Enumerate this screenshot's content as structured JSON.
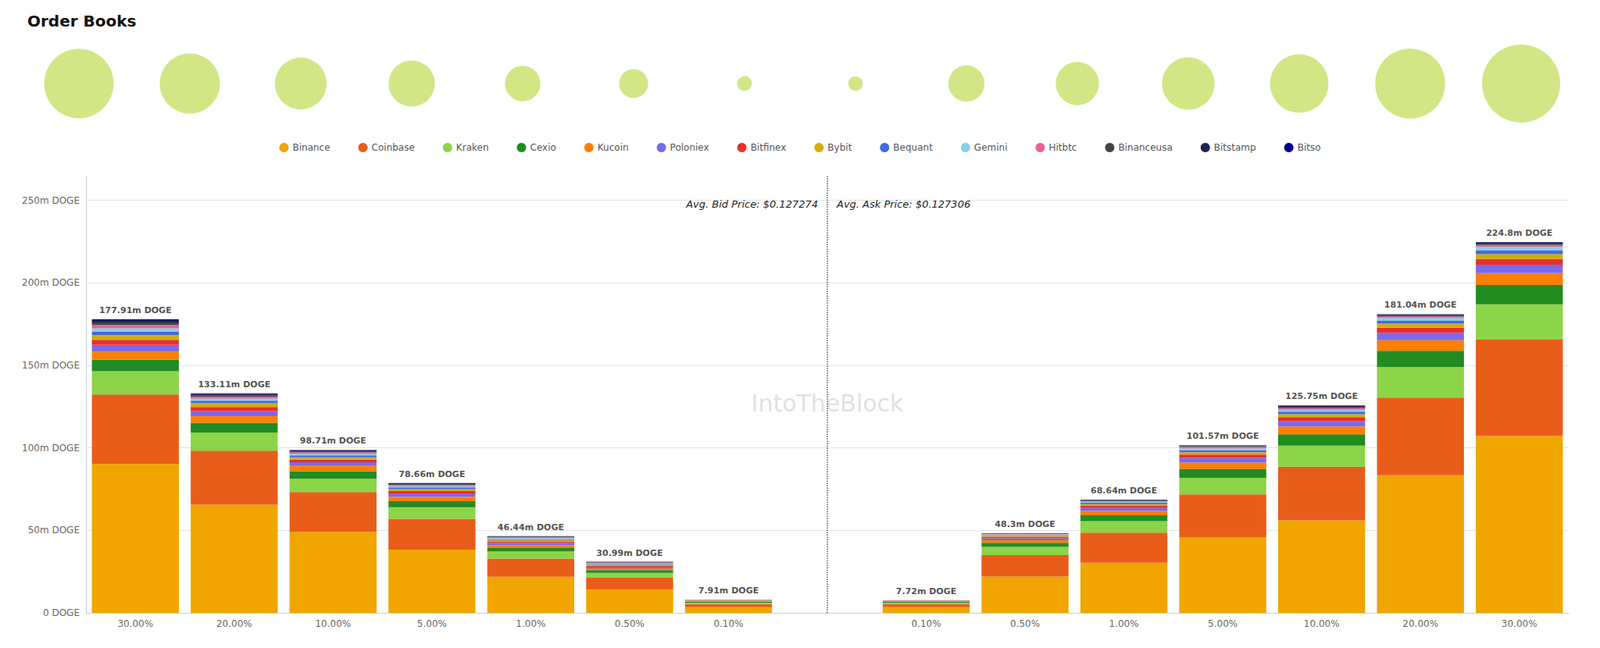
{
  "chart_data": {
    "type": "bar",
    "title": "Order Books",
    "categories": [
      "30.00%",
      "20.00%",
      "10.00%",
      "5.00%",
      "1.00%",
      "0.50%",
      "0.10%",
      null,
      "0.10%",
      "0.50%",
      "1.00%",
      "5.00%",
      "10.00%",
      "20.00%",
      "30.00%"
    ],
    "stacked": true,
    "series": [
      {
        "name": "Binance",
        "color": "#F0A500",
        "values": [
          90.2536,
          65.5567,
          49.1494,
          38.3659,
          21.8963,
          14.0687,
          3.4824,
          null,
          3.4865,
          22,
          30.3538,
          45.9096,
          56.1076,
          83.3879,
          107.1404
        ]
      },
      {
        "name": "Coinbase",
        "color": "#E85D1A",
        "values": [
          42.1184,
          32.7784,
          24.0732,
          18.6911,
          10.9481,
          7.2769,
          1.9899,
          null,
          1.9923,
          13,
          18.2123,
          25.9489,
          32.4834,
          47.0896,
          58.4402
        ]
      },
      {
        "name": "Kraken",
        "color": "#8CD448",
        "values": [
          14.0395,
          10.9261,
          8.0244,
          6.8862,
          4.4788,
          2.9108,
          0.6965,
          null,
          0.6973,
          5,
          7.0825,
          9.9803,
          12.7965,
          18.6396,
          21.4281
        ]
      },
      {
        "name": "Cexio",
        "color": "#228B22",
        "values": [
          7.0197,
          5.9597,
          4.5137,
          3.7382,
          2.2892,
          1.6494,
          0.4477,
          null,
          0.4483,
          2.5,
          3.5413,
          5.4892,
          6.8904,
          9.8103,
          11.688
        ]
      },
      {
        "name": "Kucoin",
        "color": "#FF7F00",
        "values": [
          5.0141,
          3.9731,
          3.3101,
          2.7545,
          1.4929,
          1.0673,
          0.3482,
          null,
          0.3486,
          1.5,
          2.5295,
          3.7925,
          4.7249,
          6.3767,
          7.305
        ]
      },
      {
        "name": "Poloniex",
        "color": "#7B68EE",
        "values": [
          4.0113,
          3.1785,
          2.307,
          1.9675,
          1.2939,
          0.9703,
          0.2487,
          null,
          0.249,
          1.2,
          1.8212,
          2.7945,
          3.2483,
          4.4147,
          5.0648
        ]
      },
      {
        "name": "Bitfinex",
        "color": "#E8302A",
        "values": [
          3.0085,
          2.4832,
          1.5046,
          1.3772,
          0.8958,
          0.6792,
          0.1791,
          null,
          0.1494,
          0.8,
          1.3153,
          1.9961,
          2.3624,
          3.1393,
          3.409
        ]
      },
      {
        "name": "Bybit",
        "color": "#D4AC0D",
        "values": [
          3.0085,
          2.2846,
          1.4043,
          1.2789,
          0.7962,
          0.5822,
          0.1492,
          null,
          0.0996,
          0.6,
          1.0118,
          1.4971,
          1.7718,
          2.4526,
          2.922
        ]
      },
      {
        "name": "Bequant",
        "color": "#4169E1",
        "values": [
          2.0056,
          1.4899,
          1.2037,
          0.9837,
          0.5972,
          0.4851,
          0.1194,
          null,
          0.0996,
          0.5,
          0.8094,
          1.2974,
          1.575,
          1.9621,
          2.435
        ]
      },
      {
        "name": "Gemini",
        "color": "#87CEEB",
        "values": [
          2.0056,
          1.2913,
          0.9027,
          0.787,
          0.5972,
          0.3881,
          0.0796,
          null,
          0.0598,
          0.4,
          0.6071,
          0.998,
          1.1812,
          1.4716,
          1.948
        ]
      },
      {
        "name": "Hitbtc",
        "color": "#E8609A",
        "values": [
          2.0056,
          1.1919,
          0.8024,
          0.6886,
          0.4976,
          0.3396,
          0.0696,
          null,
          0.0398,
          0.3,
          0.5059,
          0.7984,
          0.9843,
          0.981,
          1.1688
        ]
      },
      {
        "name": "Binanceusa",
        "color": "#444444",
        "values": [
          1.5042,
          0.7946,
          0.6018,
          0.4919,
          0.2986,
          0.2426,
          0.0298,
          null,
          0.0199,
          0.2,
          0.4047,
          0.499,
          0.7875,
          0.6867,
          0.8766
        ]
      },
      {
        "name": "Bitstamp",
        "color": "#222255",
        "values": [
          1.5042,
          0.7946,
          0.6018,
          0.4919,
          0.2986,
          0.2426,
          0.0298,
          null,
          0.0199,
          0.2,
          0.3035,
          0.3992,
          0.5906,
          0.5886,
          0.7792
        ]
      },
      {
        "name": "Bitso",
        "color": "#00008B",
        "values": [
          0.4112,
          0.4072,
          0.3109,
          0.1574,
          0.0597,
          0.0873,
          0.0398,
          null,
          0.01,
          0.1,
          0.1417,
          0.1697,
          0.2461,
          0.0392,
          0.1948
        ]
      }
    ],
    "totals": [
      177.91,
      133.11,
      98.71,
      78.66,
      46.44,
      30.99,
      7.91,
      null,
      7.72,
      48.3,
      68.64,
      101.57,
      125.75,
      181.04,
      224.8
    ],
    "total_labels": [
      "177.91m DOGE",
      "133.11m DOGE",
      "98.71m DOGE",
      "78.66m DOGE",
      "46.44m DOGE",
      "30.99m DOGE",
      "7.91m DOGE",
      null,
      "7.72m DOGE",
      "48.3m DOGE",
      "68.64m DOGE",
      "101.57m DOGE",
      "125.75m DOGE",
      "181.04m DOGE",
      "224.8m DOGE"
    ],
    "annotations": [
      "Avg. Bid Price: $0.127274",
      "Avg. Ask Price: $0.127306"
    ],
    "watermark": "IntoTheBlock",
    "bubble_sizes": [
      177.91,
      133.11,
      98.71,
      78.66,
      46.44,
      30.99,
      7.91,
      7.72,
      48.3,
      68.64,
      101.57,
      125.75,
      181.04,
      224.8
    ],
    "ylim": [
      0,
      265
    ],
    "yticks": [
      {
        "value": 0,
        "label": "0 DOGE"
      },
      {
        "value": 50,
        "label": "50m DOGE"
      },
      {
        "value": 100,
        "label": "100m DOGE"
      },
      {
        "value": 150,
        "label": "150m DOGE"
      },
      {
        "value": 200,
        "label": "200m DOGE"
      },
      {
        "value": 250,
        "label": "250m DOGE"
      }
    ],
    "grid": true,
    "legend": "top"
  }
}
